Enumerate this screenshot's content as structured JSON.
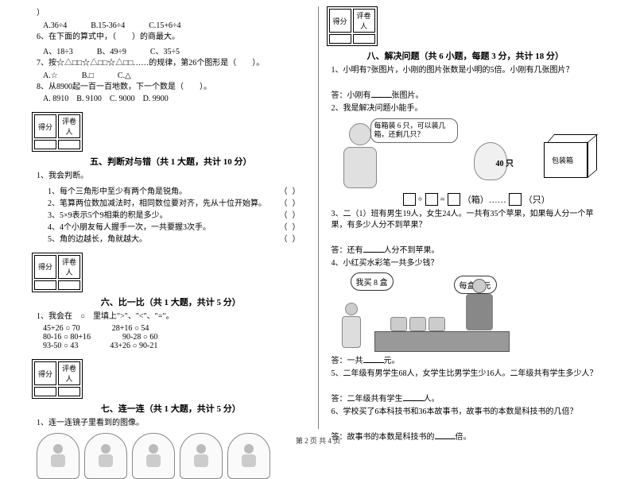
{
  "score_header": {
    "score": "得分",
    "reviewer": "评卷人"
  },
  "left": {
    "q4_cont": "）",
    "q4_opts": [
      "A.36÷4",
      "B.15-36÷4",
      "C.15+6÷4"
    ],
    "q6": "6、在下面的算式中，（　　）的商最大。",
    "q6_opts": [
      "A、18÷3",
      "B、49÷9",
      "C、35÷5"
    ],
    "q7": "7、按☆△□□☆△□□☆△□□……的规律，第26个图形是（　　）。",
    "q7_opts": [
      "A.☆",
      "B.□",
      "C.△"
    ],
    "q8": "8、从8900起一百一百地数，下一个数是（　　）。",
    "q8_opts": [
      "A. 8910",
      "B. 9100",
      "C. 9000",
      "D. 9900"
    ],
    "sec5_title": "五、判断对与错（共 1 大题，共计 10 分）",
    "s5_lead": "1、我会判断。",
    "s5_items": [
      "1、每个三角形中至少有两个角是锐角。",
      "2、笔算两位数加减法时，相同数位要对齐，先从十位开始算。",
      "3、5×9表示5个9相乘的积是多少。",
      "4、4个小朋友每人握手一次，一共要握3次手。",
      "5、角的边越长，角就越大。"
    ],
    "sec6_title": "六、比一比（共 1 大题，共计 5 分）",
    "s6_lead": "1、我会在　○　里填上\">\"、\"<\"、\"=\"。",
    "s6_rows": [
      [
        "45+26 ○ 70",
        "28+16 ○ 54"
      ],
      [
        "80-16 ○ 80+16",
        "90-28 ○ 60"
      ],
      [
        "93-50 ○ 43",
        "43+26 ○ 90-21"
      ]
    ],
    "sec7_title": "七、连一连（共 1 大题，共计 5 分）",
    "s7_lead": "1、连一连镜子里看到的图像。"
  },
  "right": {
    "sec8_title": "八、解决问题（共 6 小题，每题 3 分，共计 18 分）",
    "q1": "1、小明有7张图片，小刚的图片张数是小明的5倍。小刚有几张图片？",
    "a1_pre": "答：小刚有",
    "a1_post": "张图片。",
    "q2": "2、我是解决问题小能手。",
    "bubble": "每箱装 6 只，可以装几箱，还剩几只？",
    "label40": "40 只",
    "box_label": "包装箱",
    "eq_parts": [
      "÷",
      "=",
      "（箱）……",
      "（只）"
    ],
    "q3": "3、二（1）班有男生19人，女生24人。一共有35个苹果，如果每人分一个苹果，有多少人分不到苹果？",
    "a3_pre": "答：还有",
    "a3_post": "人分不到苹果。",
    "q4": "4、小红买水彩笔一共多少钱？",
    "speech1": "我买 8 盒",
    "speech2": "每盒 8 元",
    "a4_pre": "答：一共",
    "a4_post": "元。",
    "q5": "5、二年级有男学生68人，女学生比男学生少16人。二年级共有学生多少人？",
    "a5_pre": "答：二年级共有学生",
    "a5_post": "人。",
    "q6": "6、学校买了6本科技书和36本故事书，故事书的本数是科技书的几倍？",
    "a6_pre": "答：故事书的本数是科技书的",
    "a6_post": "倍。"
  },
  "footer": "第 2 页 共 4 页"
}
